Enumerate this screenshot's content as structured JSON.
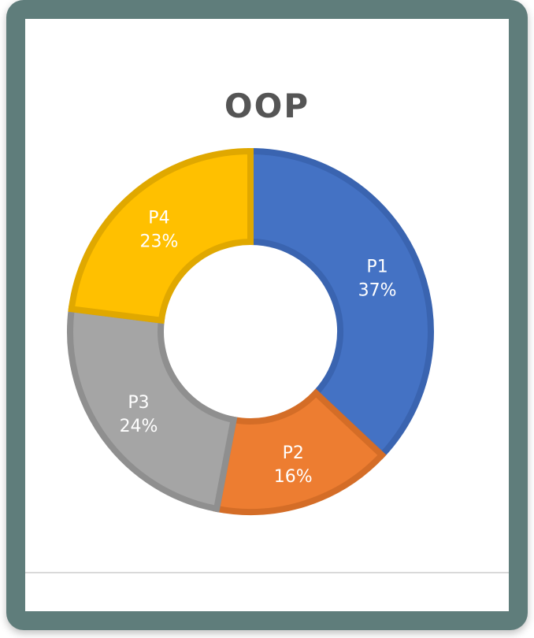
{
  "chart_data": {
    "type": "pie",
    "title": "OOP",
    "donut": true,
    "categories": [
      "P1",
      "P2",
      "P3",
      "P4"
    ],
    "values": [
      37,
      16,
      24,
      23
    ],
    "value_labels": [
      "37%",
      "16%",
      "24%",
      "23%"
    ],
    "colors": [
      "#4472c4",
      "#ed7d31",
      "#a5a5a5",
      "#ffc000"
    ],
    "border_colors": [
      "#3a64b0",
      "#d46d27",
      "#8f8f8f",
      "#e0a800"
    ],
    "legend": "none",
    "data_labels": "inside"
  }
}
